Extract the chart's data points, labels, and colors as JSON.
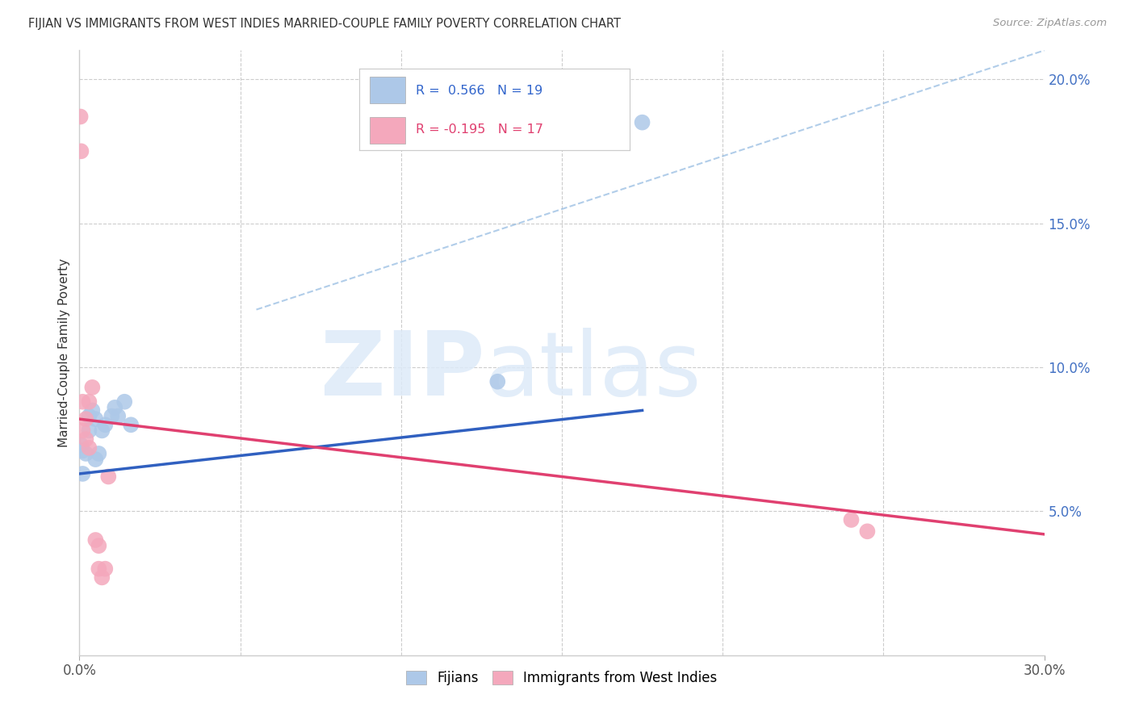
{
  "title": "FIJIAN VS IMMIGRANTS FROM WEST INDIES MARRIED-COUPLE FAMILY POVERTY CORRELATION CHART",
  "source": "Source: ZipAtlas.com",
  "ylabel": "Married-Couple Family Poverty",
  "xlim": [
    0.0,
    0.3
  ],
  "ylim": [
    0.0,
    0.21
  ],
  "ytick_positions": [
    0.05,
    0.1,
    0.15,
    0.2
  ],
  "ytick_labels": [
    "5.0%",
    "10.0%",
    "15.0%",
    "20.0%"
  ],
  "xtick_positions": [
    0.05,
    0.1,
    0.15,
    0.2,
    0.25
  ],
  "background_color": "#ffffff",
  "grid_color": "#cccccc",
  "fijian_color": "#adc8e8",
  "westindies_color": "#f4a8bc",
  "fijian_line_color": "#3060c0",
  "westindies_line_color": "#e04070",
  "diagonal_color": "#90b8e0",
  "R_fijian": 0.566,
  "N_fijian": 19,
  "R_westindies": -0.195,
  "N_westindies": 17,
  "fijian_line_x0": 0.0,
  "fijian_line_y0": 0.063,
  "fijian_line_x1": 0.175,
  "fijian_line_y1": 0.085,
  "westindies_line_x0": 0.0,
  "westindies_line_y0": 0.082,
  "westindies_line_x1": 0.3,
  "westindies_line_y1": 0.042,
  "diag_line_x0": 0.055,
  "diag_line_y0": 0.12,
  "diag_line_x1": 0.3,
  "diag_line_y1": 0.21,
  "fijian_x": [
    0.0005,
    0.001,
    0.001,
    0.002,
    0.003,
    0.003,
    0.004,
    0.005,
    0.005,
    0.006,
    0.007,
    0.008,
    0.01,
    0.011,
    0.012,
    0.014,
    0.016,
    0.13,
    0.175
  ],
  "fijian_y": [
    0.073,
    0.063,
    0.071,
    0.07,
    0.083,
    0.078,
    0.085,
    0.082,
    0.068,
    0.07,
    0.078,
    0.08,
    0.083,
    0.086,
    0.083,
    0.088,
    0.08,
    0.095,
    0.185
  ],
  "westindies_x": [
    0.0003,
    0.0005,
    0.001,
    0.001,
    0.002,
    0.002,
    0.003,
    0.003,
    0.004,
    0.005,
    0.006,
    0.006,
    0.007,
    0.008,
    0.009,
    0.24,
    0.245
  ],
  "westindies_y": [
    0.187,
    0.175,
    0.078,
    0.088,
    0.082,
    0.075,
    0.088,
    0.072,
    0.093,
    0.04,
    0.038,
    0.03,
    0.027,
    0.03,
    0.062,
    0.047,
    0.043
  ]
}
